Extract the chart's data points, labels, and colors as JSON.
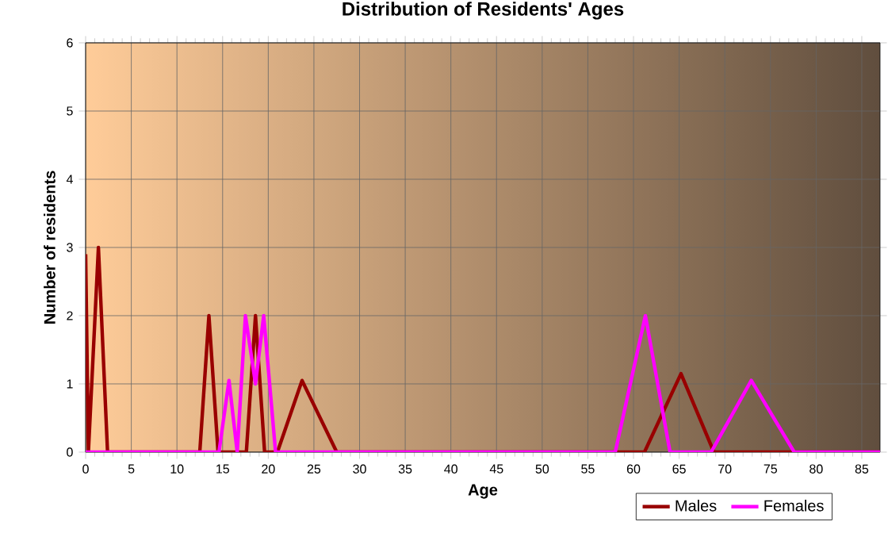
{
  "chart_data": {
    "type": "line",
    "title": "Distribution of Residents' Ages",
    "xlabel": "Age",
    "ylabel": "Number of residents",
    "xlim": [
      0,
      87
    ],
    "xticks": [
      0,
      5,
      10,
      15,
      20,
      25,
      30,
      35,
      40,
      45,
      50,
      55,
      60,
      65,
      70,
      75,
      80,
      85
    ],
    "ylim": [
      0,
      6
    ],
    "yticks": [
      0,
      1,
      2,
      3,
      4,
      5,
      6
    ],
    "grid": true,
    "legend": "bottom right",
    "marker": "none",
    "series": [
      {
        "name": "Males",
        "color": "#990000",
        "x": [
          0,
          0.3,
          1.4,
          2.4,
          12.5,
          13.5,
          14.5,
          17.6,
          18.6,
          19.6,
          21,
          23.7,
          27.5,
          61.2,
          65.2,
          68.8,
          87
        ],
        "values": [
          2.9,
          0,
          3,
          0,
          0,
          2,
          0,
          0,
          2,
          0,
          0,
          1.05,
          0,
          0,
          1.15,
          0,
          0
        ]
      },
      {
        "name": "Females",
        "color": "#ff00ff",
        "x": [
          0,
          14.6,
          15.7,
          16.6,
          17.5,
          18.6,
          19.5,
          20.8,
          58,
          61.3,
          64,
          68.5,
          72.9,
          77.6,
          87
        ],
        "values": [
          0,
          0,
          1.05,
          0,
          2,
          1,
          2,
          0,
          0,
          2,
          0,
          0,
          1.05,
          0,
          0
        ]
      }
    ]
  }
}
